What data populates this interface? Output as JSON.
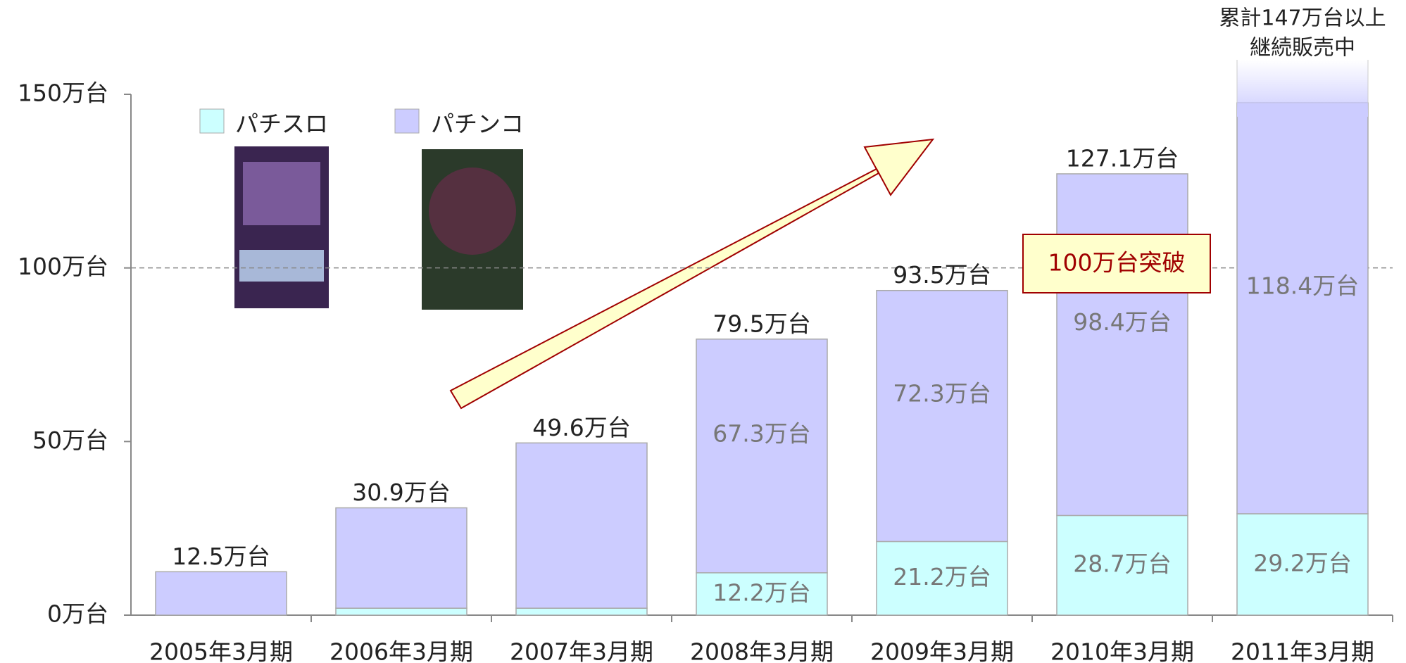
{
  "chart_data": {
    "type": "stacked_bar",
    "categories": [
      "2005年3月期",
      "2006年3月期",
      "2007年3月期",
      "2008年3月期",
      "2009年3月期",
      "2010年3月期",
      "2011年3月期"
    ],
    "series": [
      {
        "name": "パチスロ",
        "color": "#ccffff",
        "values": [
          0,
          2.0,
          2.0,
          12.2,
          21.2,
          28.7,
          29.2
        ],
        "value_labels": [
          null,
          null,
          null,
          "12.2万台",
          "21.2万台",
          "28.7万台",
          "29.2万台"
        ]
      },
      {
        "name": "パチンコ",
        "color": "#ccccff",
        "values": [
          12.5,
          28.9,
          47.6,
          67.3,
          72.3,
          98.4,
          118.4
        ],
        "value_labels": [
          null,
          null,
          null,
          "67.3万台",
          "72.3万台",
          "98.4万台",
          "118.4万台"
        ]
      }
    ],
    "totals": [
      12.5,
      30.9,
      49.6,
      79.5,
      93.5,
      127.1,
      null
    ],
    "total_labels": [
      "12.5万台",
      "30.9万台",
      "49.6万台",
      "79.5万台",
      "93.5万台",
      "127.1万台",
      null
    ],
    "ylim": [
      0,
      150
    ],
    "yticks": [
      {
        "value": 0,
        "label": "0万台"
      },
      {
        "value": 50,
        "label": "50万台"
      },
      {
        "value": 100,
        "label": "100万台"
      },
      {
        "value": 150,
        "label": "150万台"
      }
    ],
    "reference_line": {
      "value": 100,
      "label": "100万台突破"
    },
    "top_note": [
      "累計147万台以上",
      "継続販売中"
    ]
  }
}
